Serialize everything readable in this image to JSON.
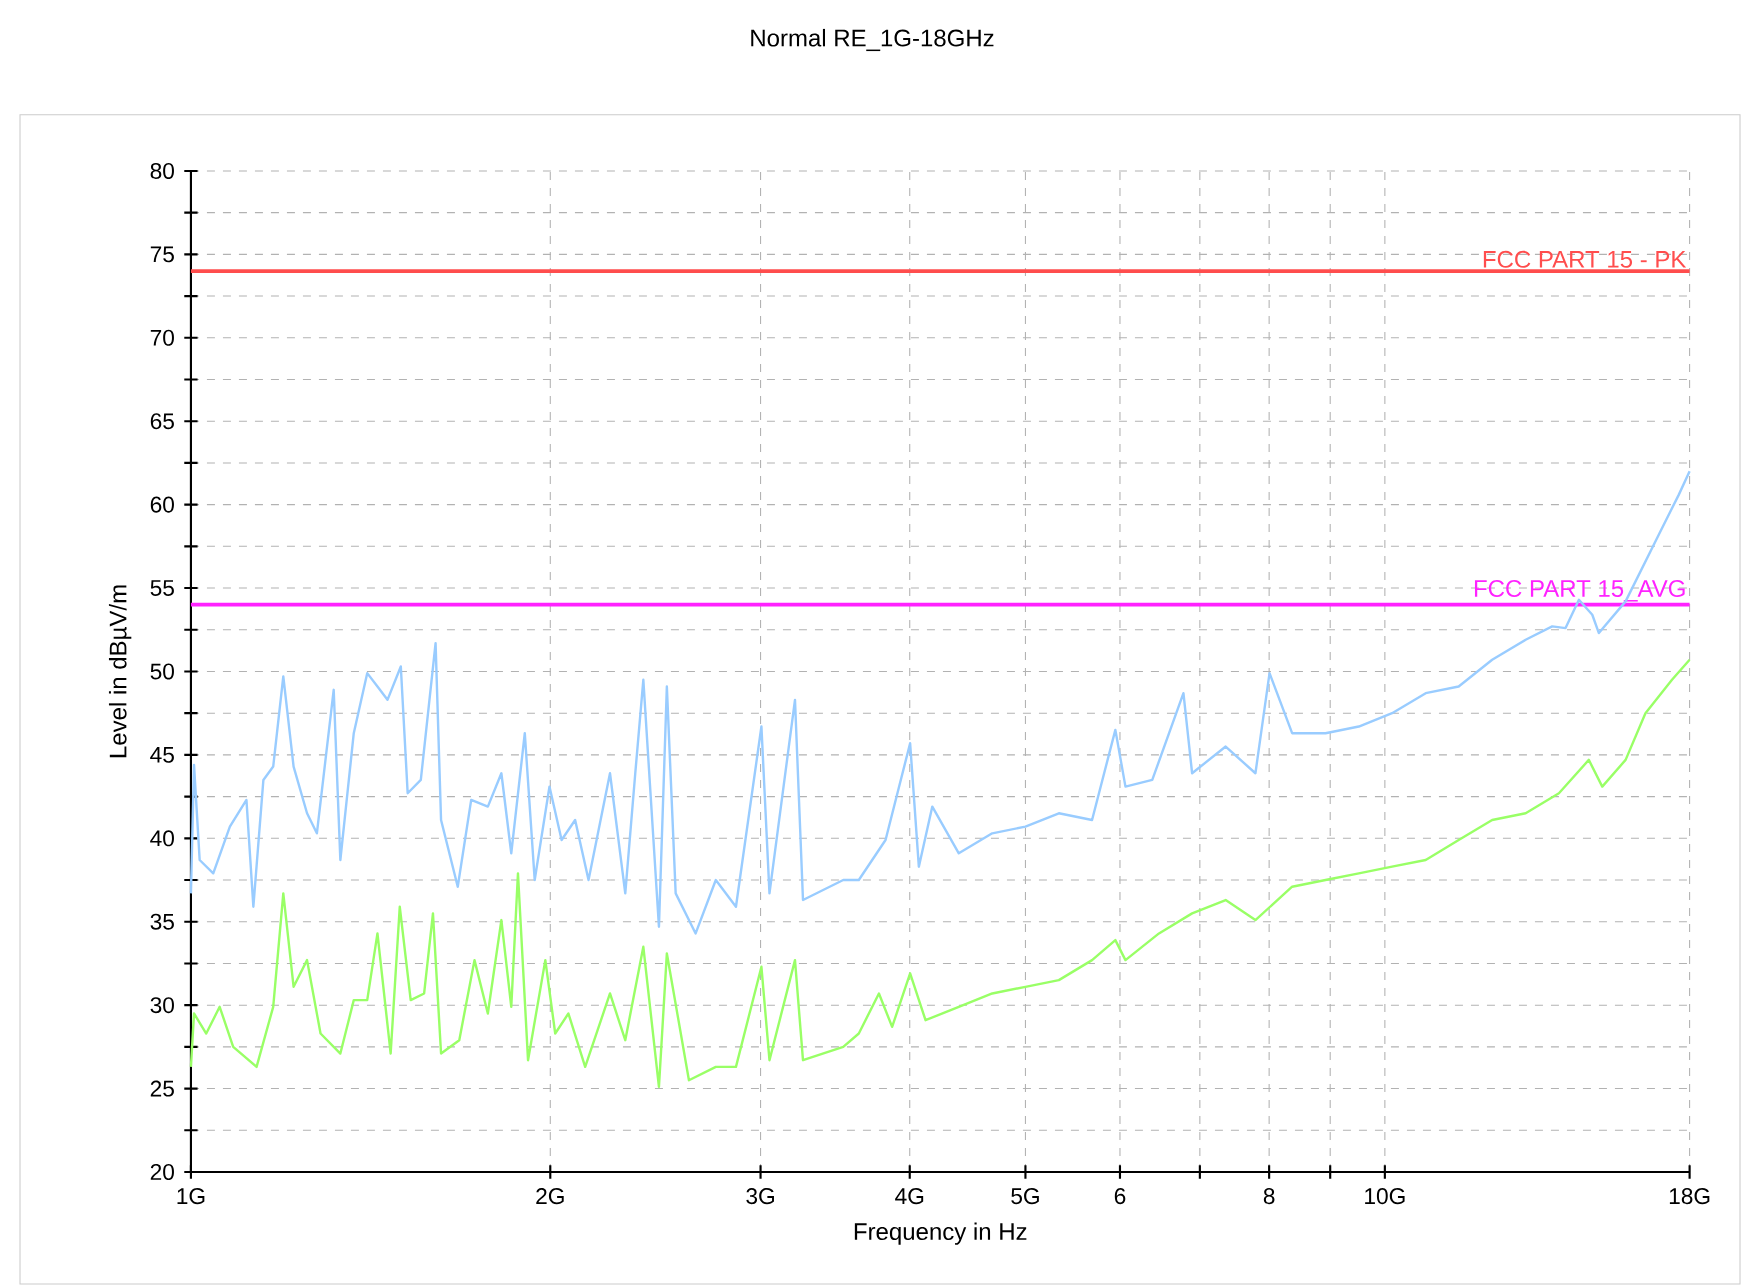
{
  "chart_data": {
    "type": "line",
    "title": "Normal RE_1G-18GHz",
    "xlabel": "Frequency in Hz",
    "ylabel": "Level in dBµV/m",
    "log": "x",
    "grid": true,
    "marker": "none",
    "line_style": "solid",
    "xlim": [
      1,
      18
    ],
    "ylim": [
      20,
      80
    ],
    "xticks": [
      {
        "value": 1,
        "label": "1G"
      },
      {
        "value": 2,
        "label": "2G"
      },
      {
        "value": 3,
        "label": "3G"
      },
      {
        "value": 4,
        "label": "4G"
      },
      {
        "value": 5,
        "label": "5G"
      },
      {
        "value": 6,
        "label": "6"
      },
      {
        "value": 7,
        "label": null
      },
      {
        "value": 8,
        "label": "8"
      },
      {
        "value": 9,
        "label": null
      },
      {
        "value": 10,
        "label": "10G"
      },
      {
        "value": 18,
        "label": "18G"
      }
    ],
    "yticks": [
      20,
      {
        "value": 22.5,
        "label": null
      },
      25,
      {
        "value": 27.5,
        "label": null
      },
      30,
      {
        "value": 32.5,
        "label": null
      },
      35,
      {
        "value": 37.5,
        "label": null
      },
      40,
      {
        "value": 42.5,
        "label": null
      },
      45,
      {
        "value": 47.5,
        "label": null
      },
      50,
      {
        "value": 52.5,
        "label": null
      },
      55,
      {
        "value": 57.5,
        "label": null
      },
      60,
      {
        "value": 62.5,
        "label": null
      },
      65,
      {
        "value": 67.5,
        "label": null
      },
      70,
      {
        "value": 72.5,
        "label": null
      },
      75,
      {
        "value": 77.5,
        "label": null
      },
      80
    ],
    "ref_lines": [
      {
        "axis": "y",
        "value": 74,
        "label": "FCC PART 15 - PK",
        "color": "#ff4d4d"
      },
      {
        "axis": "y",
        "value": 54,
        "label": "FCC PART 15_AVG",
        "color": "#ff22ff"
      }
    ],
    "series": [
      {
        "color": "#99ccff",
        "x": [
          1.0,
          1.006,
          1.017,
          1.044,
          1.078,
          1.113,
          1.128,
          1.15,
          1.172,
          1.195,
          1.219,
          1.251,
          1.275,
          1.317,
          1.334,
          1.369,
          1.405,
          1.433,
          1.461,
          1.499,
          1.519,
          1.558,
          1.603,
          1.62,
          1.673,
          1.717,
          1.773,
          1.82,
          1.855,
          1.904,
          1.941,
          1.997,
          2.044,
          2.098,
          2.153,
          2.244,
          2.311,
          2.356,
          2.393,
          2.466,
          2.504,
          2.547,
          2.647,
          2.752,
          2.861,
          3.005,
          3.052,
          3.206,
          3.256,
          3.519,
          3.626,
          3.818,
          4.003,
          4.071,
          4.178,
          4.397,
          4.69,
          5.0,
          5.333,
          5.686,
          5.947,
          6.064,
          6.386,
          6.782,
          6.896,
          7.357,
          7.792,
          8.006,
          8.363,
          8.919,
          9.511,
          10.14,
          10.82,
          11.53,
          12.3,
          13.12,
          13.81,
          14.17,
          14.54,
          14.92,
          15.11,
          15.91,
          16.96,
          17.63,
          18.0
        ],
        "values": [
          36.7,
          44.4,
          38.7,
          37.9,
          40.7,
          42.3,
          35.9,
          43.5,
          44.3,
          49.7,
          44.3,
          41.5,
          40.3,
          48.9,
          38.7,
          46.3,
          49.9,
          49.1,
          48.3,
          50.3,
          42.7,
          43.5,
          51.7,
          41.1,
          37.1,
          42.3,
          41.9,
          43.9,
          39.1,
          46.3,
          37.5,
          43.1,
          39.9,
          41.1,
          37.5,
          43.9,
          36.7,
          43.9,
          49.5,
          34.7,
          49.1,
          36.7,
          34.3,
          37.5,
          35.9,
          46.7,
          36.7,
          48.3,
          36.3,
          37.5,
          37.5,
          39.9,
          45.7,
          38.3,
          41.9,
          39.1,
          40.3,
          40.7,
          41.5,
          41.1,
          46.5,
          43.1,
          43.5,
          48.7,
          43.9,
          45.5,
          43.9,
          49.9,
          46.3,
          46.3,
          46.7,
          47.5,
          48.7,
          49.1,
          50.7,
          51.9,
          52.7,
          52.6,
          54.3,
          53.4,
          52.3,
          54.2,
          58.2,
          60.6,
          62.0
        ]
      },
      {
        "color": "#99ff66",
        "x": [
          1.0,
          1.006,
          1.03,
          1.057,
          1.085,
          1.135,
          1.172,
          1.195,
          1.219,
          1.251,
          1.284,
          1.334,
          1.369,
          1.405,
          1.433,
          1.47,
          1.496,
          1.528,
          1.568,
          1.595,
          1.62,
          1.678,
          1.728,
          1.773,
          1.82,
          1.855,
          1.879,
          1.916,
          1.981,
          2.019,
          2.071,
          2.139,
          2.244,
          2.311,
          2.393,
          2.466,
          2.504,
          2.613,
          2.752,
          2.861,
          3.005,
          3.052,
          3.206,
          3.256,
          3.519,
          3.626,
          3.77,
          3.867,
          4.003,
          4.124,
          4.397,
          4.69,
          5.0,
          5.333,
          5.686,
          5.947,
          6.064,
          6.469,
          6.896,
          7.357,
          7.792,
          8.363,
          8.919,
          9.511,
          10.14,
          10.82,
          11.53,
          12.3,
          13.12,
          13.99,
          14.82,
          15.21,
          15.91,
          16.53,
          17.4,
          18.0
        ],
        "values": [
          26.3,
          29.5,
          28.3,
          29.9,
          27.5,
          26.3,
          29.9,
          36.7,
          31.1,
          32.7,
          28.3,
          27.1,
          30.3,
          30.3,
          34.3,
          27.1,
          35.9,
          30.3,
          30.7,
          35.5,
          27.1,
          27.9,
          32.7,
          29.5,
          35.1,
          29.9,
          37.9,
          26.7,
          32.7,
          28.3,
          29.5,
          26.3,
          30.7,
          27.9,
          33.5,
          25.1,
          33.1,
          25.5,
          26.3,
          26.3,
          32.3,
          26.7,
          32.7,
          26.7,
          27.5,
          28.3,
          30.7,
          28.7,
          31.9,
          29.1,
          29.9,
          30.7,
          31.1,
          31.5,
          32.7,
          33.9,
          32.7,
          34.3,
          35.5,
          36.3,
          35.1,
          37.1,
          37.5,
          37.9,
          38.3,
          38.7,
          39.9,
          41.1,
          41.5,
          42.7,
          44.7,
          43.1,
          44.7,
          47.5,
          49.5,
          50.7
        ]
      }
    ]
  }
}
